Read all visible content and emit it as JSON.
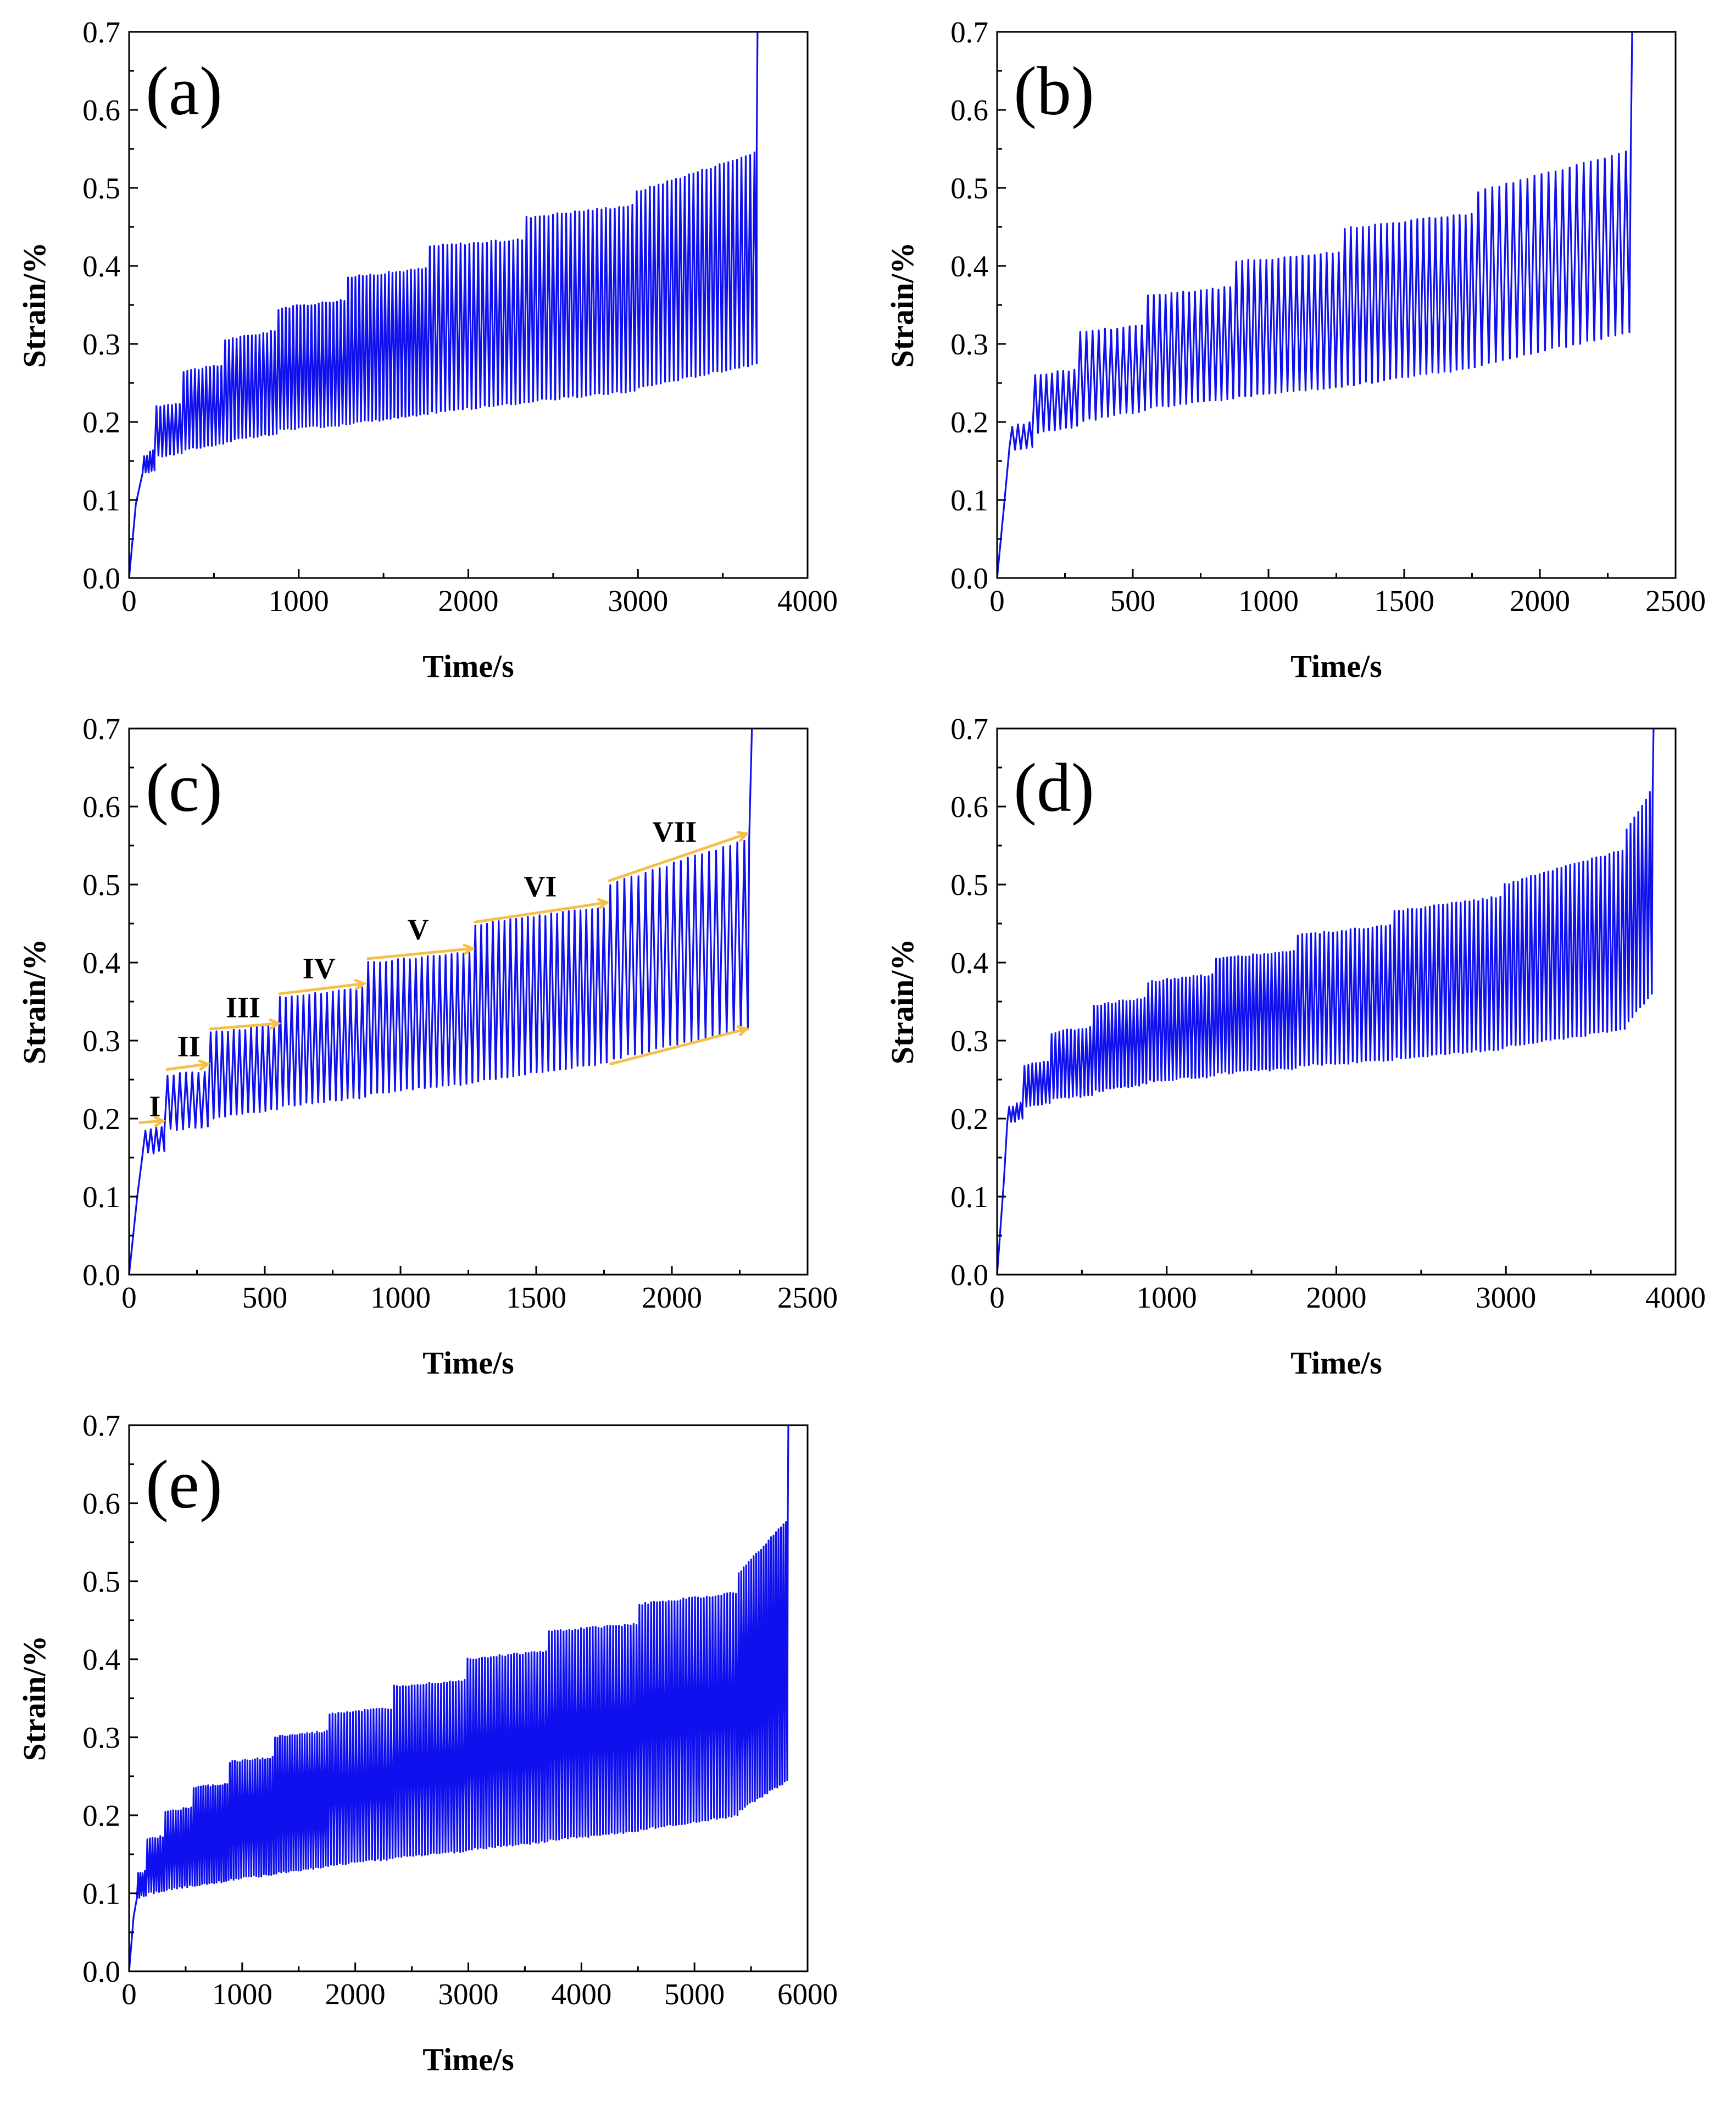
{
  "colors": {
    "series": "#1010ee",
    "annotation": "#f5c04a",
    "axis": "#000000"
  },
  "chart_data": [
    {
      "type": "line",
      "panel_label": "(a)",
      "xlabel": "Time/s",
      "ylabel": "Strain/%",
      "xlim": [
        0,
        4000
      ],
      "ylim": [
        0,
        0.7
      ],
      "x_ticks": [
        "0",
        "1000",
        "2000",
        "3000",
        "4000"
      ],
      "y_ticks": [
        "0.0",
        "0.1",
        "0.2",
        "0.3",
        "0.4",
        "0.5",
        "0.6",
        "0.7"
      ],
      "initial_ramp": [
        [
          0,
          0.0
        ],
        [
          40,
          0.095
        ],
        [
          80,
          0.135
        ]
      ],
      "stages": [
        {
          "t0": 80,
          "t1": 150,
          "max0": 0.155,
          "max1": 0.167,
          "min0": 0.135,
          "min1": 0.138
        },
        {
          "t0": 150,
          "t1": 310,
          "max0": 0.22,
          "max1": 0.225,
          "min0": 0.155,
          "min1": 0.16
        },
        {
          "t0": 310,
          "t1": 555,
          "max0": 0.265,
          "max1": 0.273,
          "min0": 0.165,
          "min1": 0.172
        },
        {
          "t0": 555,
          "t1": 870,
          "max0": 0.305,
          "max1": 0.317,
          "min0": 0.175,
          "min1": 0.185
        },
        {
          "t0": 870,
          "t1": 1280,
          "max0": 0.345,
          "max1": 0.357,
          "min0": 0.19,
          "min1": 0.197
        },
        {
          "t0": 1280,
          "t1": 1760,
          "max0": 0.385,
          "max1": 0.397,
          "min0": 0.198,
          "min1": 0.21
        },
        {
          "t0": 1760,
          "t1": 2330,
          "max0": 0.425,
          "max1": 0.434,
          "min0": 0.212,
          "min1": 0.225
        },
        {
          "t0": 2330,
          "t1": 2980,
          "max0": 0.462,
          "max1": 0.478,
          "min0": 0.226,
          "min1": 0.24
        },
        {
          "t0": 2980,
          "t1": 3700,
          "max0": 0.495,
          "max1": 0.546,
          "min0": 0.243,
          "min1": 0.275
        }
      ],
      "final_rise": [
        [
          3700,
          0.275
        ],
        [
          3700,
          0.55
        ],
        [
          3705,
          0.7
        ]
      ],
      "annotations": []
    },
    {
      "type": "line",
      "panel_label": "(b)",
      "xlabel": "Time/s",
      "ylabel": "Strain/%",
      "xlim": [
        0,
        2500
      ],
      "ylim": [
        0,
        0.7
      ],
      "x_ticks": [
        "0",
        "500",
        "1000",
        "1500",
        "2000",
        "2500"
      ],
      "y_ticks": [
        "0.0",
        "0.1",
        "0.2",
        "0.3",
        "0.4",
        "0.5",
        "0.6",
        "0.7"
      ],
      "initial_ramp": [
        [
          0,
          0.0
        ],
        [
          25,
          0.09
        ],
        [
          45,
          0.165
        ]
      ],
      "stages": [
        {
          "t0": 45,
          "t1": 130,
          "max0": 0.195,
          "max1": 0.2,
          "min0": 0.165,
          "min1": 0.168
        },
        {
          "t0": 130,
          "t1": 295,
          "max0": 0.26,
          "max1": 0.268,
          "min0": 0.185,
          "min1": 0.195
        },
        {
          "t0": 295,
          "t1": 545,
          "max0": 0.315,
          "max1": 0.325,
          "min0": 0.2,
          "min1": 0.215
        },
        {
          "t0": 545,
          "t1": 870,
          "max0": 0.362,
          "max1": 0.373,
          "min0": 0.218,
          "min1": 0.23
        },
        {
          "t0": 870,
          "t1": 1270,
          "max0": 0.405,
          "max1": 0.418,
          "min0": 0.232,
          "min1": 0.245
        },
        {
          "t0": 1270,
          "t1": 1760,
          "max0": 0.448,
          "max1": 0.468,
          "min0": 0.246,
          "min1": 0.27
        },
        {
          "t0": 1760,
          "t1": 2330,
          "max0": 0.495,
          "max1": 0.548,
          "min0": 0.272,
          "min1": 0.315
        }
      ],
      "final_rise": [
        [
          2330,
          0.315
        ],
        [
          2335,
          0.55
        ],
        [
          2340,
          0.7
        ]
      ],
      "annotations": []
    },
    {
      "type": "line",
      "panel_label": "(c)",
      "xlabel": "Time/s",
      "ylabel": "Strain/%",
      "xlim": [
        0,
        2500
      ],
      "ylim": [
        0,
        0.7
      ],
      "x_ticks": [
        "0",
        "500",
        "1000",
        "1500",
        "2000",
        "2500"
      ],
      "y_ticks": [
        "0.0",
        "0.1",
        "0.2",
        "0.3",
        "0.4",
        "0.5",
        "0.6",
        "0.7"
      ],
      "initial_ramp": [
        [
          0,
          0.0
        ],
        [
          30,
          0.1
        ],
        [
          50,
          0.155
        ]
      ],
      "stages": [
        {
          "t0": 50,
          "t1": 130,
          "max0": 0.185,
          "max1": 0.192,
          "min0": 0.155,
          "min1": 0.158
        },
        {
          "t0": 130,
          "t1": 290,
          "max0": 0.255,
          "max1": 0.262,
          "min0": 0.185,
          "min1": 0.19
        },
        {
          "t0": 290,
          "t1": 545,
          "max0": 0.31,
          "max1": 0.32,
          "min0": 0.2,
          "min1": 0.212
        },
        {
          "t0": 545,
          "t1": 870,
          "max0": 0.355,
          "max1": 0.368,
          "min0": 0.215,
          "min1": 0.228
        },
        {
          "t0": 870,
          "t1": 1265,
          "max0": 0.4,
          "max1": 0.413,
          "min0": 0.232,
          "min1": 0.246
        },
        {
          "t0": 1265,
          "t1": 1760,
          "max0": 0.448,
          "max1": 0.472,
          "min0": 0.248,
          "min1": 0.272
        },
        {
          "t0": 1760,
          "t1": 2280,
          "max0": 0.5,
          "max1": 0.56,
          "min0": 0.275,
          "min1": 0.315
        }
      ],
      "final_rise": [
        [
          2280,
          0.315
        ],
        [
          2285,
          0.56
        ],
        [
          2295,
          0.7
        ]
      ],
      "annotations": [
        {
          "text": "I",
          "x": 95,
          "y": 0.203,
          "arrow": [
            [
              40,
              0.195
            ],
            [
              125,
              0.197
            ]
          ]
        },
        {
          "text": "II",
          "x": 220,
          "y": 0.28,
          "arrow": [
            [
              140,
              0.263
            ],
            [
              290,
              0.27
            ]
          ]
        },
        {
          "text": "III",
          "x": 420,
          "y": 0.33,
          "arrow": [
            [
              300,
              0.315
            ],
            [
              550,
              0.322
            ]
          ]
        },
        {
          "text": "IV",
          "x": 700,
          "y": 0.38,
          "arrow": [
            [
              555,
              0.36
            ],
            [
              865,
              0.373
            ]
          ]
        },
        {
          "text": "V",
          "x": 1065,
          "y": 0.43,
          "arrow": [
            [
              880,
              0.405
            ],
            [
              1265,
              0.418
            ]
          ]
        },
        {
          "text": "VI",
          "x": 1515,
          "y": 0.485,
          "arrow": [
            [
              1275,
              0.452
            ],
            [
              1760,
              0.477
            ]
          ]
        },
        {
          "text": "VII",
          "x": 2010,
          "y": 0.555,
          "arrow": [
            [
              1770,
              0.505
            ],
            [
              2275,
              0.565
            ]
          ]
        },
        {
          "text": "",
          "x": 0,
          "y": 0,
          "arrow": [
            [
              1775,
              0.27
            ],
            [
              2275,
              0.315
            ]
          ]
        }
      ]
    },
    {
      "type": "line",
      "panel_label": "(d)",
      "xlabel": "Time/s",
      "ylabel": "Strain/%",
      "xlim": [
        0,
        4000
      ],
      "ylim": [
        0,
        0.7
      ],
      "x_ticks": [
        "0",
        "1000",
        "2000",
        "3000",
        "4000"
      ],
      "y_ticks": [
        "0.0",
        "0.1",
        "0.2",
        "0.3",
        "0.4",
        "0.5",
        "0.6",
        "0.7"
      ],
      "initial_ramp": [
        [
          0,
          0.0
        ],
        [
          40,
          0.12
        ],
        [
          60,
          0.195
        ]
      ],
      "stages": [
        {
          "t0": 60,
          "t1": 150,
          "max0": 0.215,
          "max1": 0.222,
          "min0": 0.195,
          "min1": 0.2
        },
        {
          "t0": 150,
          "t1": 310,
          "max0": 0.268,
          "max1": 0.275,
          "min0": 0.215,
          "min1": 0.22
        },
        {
          "t0": 310,
          "t1": 560,
          "max0": 0.31,
          "max1": 0.318,
          "min0": 0.225,
          "min1": 0.23
        },
        {
          "t0": 560,
          "t1": 880,
          "max0": 0.345,
          "max1": 0.355,
          "min0": 0.235,
          "min1": 0.245
        },
        {
          "t0": 880,
          "t1": 1280,
          "max0": 0.375,
          "max1": 0.385,
          "min0": 0.248,
          "min1": 0.255
        },
        {
          "t0": 1280,
          "t1": 1760,
          "max0": 0.405,
          "max1": 0.415,
          "min0": 0.258,
          "min1": 0.265
        },
        {
          "t0": 1760,
          "t1": 2330,
          "max0": 0.435,
          "max1": 0.448,
          "min0": 0.268,
          "min1": 0.275
        },
        {
          "t0": 2330,
          "t1": 2980,
          "max0": 0.465,
          "max1": 0.485,
          "min0": 0.277,
          "min1": 0.29
        },
        {
          "t0": 2980,
          "t1": 3700,
          "max0": 0.5,
          "max1": 0.545,
          "min0": 0.292,
          "min1": 0.315
        },
        {
          "t0": 3700,
          "t1": 3860,
          "max0": 0.57,
          "max1": 0.625,
          "min0": 0.32,
          "min1": 0.36
        }
      ],
      "final_rise": [
        [
          3860,
          0.36
        ],
        [
          3865,
          0.62
        ],
        [
          3870,
          0.7
        ]
      ],
      "annotations": []
    },
    {
      "type": "line",
      "panel_label": "(e)",
      "xlabel": "Time/s",
      "ylabel": "Strain/%",
      "xlim": [
        0,
        6000
      ],
      "ylim": [
        0,
        0.7
      ],
      "x_ticks": [
        "0",
        "1000",
        "2000",
        "3000",
        "4000",
        "5000",
        "6000"
      ],
      "y_ticks": [
        "0.0",
        "0.1",
        "0.2",
        "0.3",
        "0.4",
        "0.5",
        "0.6",
        "0.7"
      ],
      "initial_ramp": [
        [
          0,
          0.0
        ],
        [
          40,
          0.07
        ],
        [
          70,
          0.095
        ]
      ],
      "stages": [
        {
          "t0": 70,
          "t1": 150,
          "max0": 0.125,
          "max1": 0.128,
          "min0": 0.095,
          "min1": 0.097
        },
        {
          "t0": 150,
          "t1": 310,
          "max0": 0.17,
          "max1": 0.173,
          "min0": 0.1,
          "min1": 0.103
        },
        {
          "t0": 310,
          "t1": 560,
          "max0": 0.205,
          "max1": 0.21,
          "min0": 0.105,
          "min1": 0.11
        },
        {
          "t0": 560,
          "t1": 880,
          "max0": 0.235,
          "max1": 0.24,
          "min0": 0.11,
          "min1": 0.117
        },
        {
          "t0": 880,
          "t1": 1280,
          "max0": 0.268,
          "max1": 0.274,
          "min0": 0.118,
          "min1": 0.125
        },
        {
          "t0": 1280,
          "t1": 1760,
          "max0": 0.3,
          "max1": 0.307,
          "min0": 0.126,
          "min1": 0.135
        },
        {
          "t0": 1760,
          "t1": 2330,
          "max0": 0.33,
          "max1": 0.337,
          "min0": 0.136,
          "min1": 0.145
        },
        {
          "t0": 2330,
          "t1": 2980,
          "max0": 0.365,
          "max1": 0.373,
          "min0": 0.146,
          "min1": 0.155
        },
        {
          "t0": 2980,
          "t1": 3700,
          "max0": 0.4,
          "max1": 0.41,
          "min0": 0.156,
          "min1": 0.167
        },
        {
          "t0": 3700,
          "t1": 4500,
          "max0": 0.435,
          "max1": 0.445,
          "min0": 0.168,
          "min1": 0.18
        },
        {
          "t0": 4500,
          "t1": 5380,
          "max0": 0.47,
          "max1": 0.485,
          "min0": 0.182,
          "min1": 0.2
        },
        {
          "t0": 5380,
          "t1": 5820,
          "max0": 0.51,
          "max1": 0.58,
          "min0": 0.205,
          "min1": 0.245
        }
      ],
      "final_rise": [
        [
          5820,
          0.245
        ],
        [
          5825,
          0.58
        ],
        [
          5830,
          0.7
        ]
      ],
      "annotations": []
    }
  ]
}
